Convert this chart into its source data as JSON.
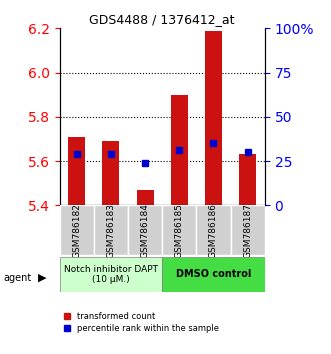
{
  "title": "GDS4488 / 1376412_at",
  "samples": [
    "GSM786182",
    "GSM786183",
    "GSM786184",
    "GSM786185",
    "GSM786186",
    "GSM786187"
  ],
  "bar_bottoms": [
    5.4,
    5.4,
    5.4,
    5.4,
    5.4,
    5.4
  ],
  "bar_tops": [
    5.71,
    5.69,
    5.47,
    5.9,
    6.19,
    5.63
  ],
  "percentile_values": [
    5.63,
    5.63,
    5.59,
    5.65,
    5.68,
    5.64
  ],
  "ylim_left": [
    5.4,
    6.2
  ],
  "ylim_right": [
    0,
    100
  ],
  "yticks_left": [
    5.4,
    5.6,
    5.8,
    6.0,
    6.2
  ],
  "yticks_right": [
    0,
    25,
    50,
    75,
    100
  ],
  "ytick_labels_right": [
    "0",
    "25",
    "50",
    "75",
    "100%"
  ],
  "bar_color": "#cc1111",
  "blue_color": "#0000cc",
  "group1_label": "Notch inhibitor DAPT\n(10 μM.)",
  "group2_label": "DMSO control",
  "group1_color": "#ccffcc",
  "group2_color": "#44dd44",
  "group1_indices": [
    0,
    1,
    2
  ],
  "group2_indices": [
    3,
    4,
    5
  ],
  "legend_red": "transformed count",
  "legend_blue": "percentile rank within the sample",
  "agent_label": "agent",
  "grid_lines": [
    5.6,
    5.8,
    6.0
  ],
  "bar_width": 0.5
}
